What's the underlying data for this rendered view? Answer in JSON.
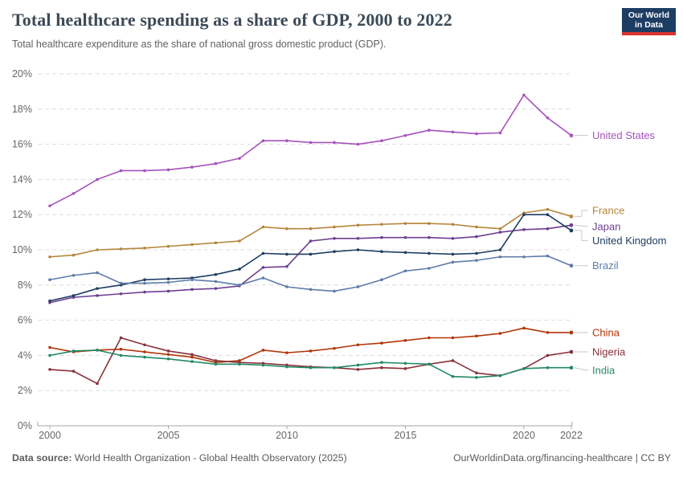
{
  "header": {
    "title": "Total healthcare spending as a share of GDP, 2000 to 2022",
    "subtitle": "Total healthcare expenditure as the share of national gross domestic product (GDP).",
    "logo": {
      "line1": "Our World",
      "line2": "in Data",
      "bg_color": "#1d3d63",
      "accent_color": "#dd352e"
    }
  },
  "chart_data": {
    "type": "line",
    "title": "Total healthcare spending as a share of GDP, 2000 to 2022",
    "xlabel": "",
    "ylabel": "",
    "x": [
      2000,
      2001,
      2002,
      2003,
      2004,
      2005,
      2006,
      2007,
      2008,
      2009,
      2010,
      2011,
      2012,
      2013,
      2014,
      2015,
      2016,
      2017,
      2018,
      2019,
      2020,
      2021,
      2022
    ],
    "x_tick_labels": [
      "2000",
      "2005",
      "2010",
      "2015",
      "2020",
      "2022"
    ],
    "x_tick_values": [
      2000,
      2005,
      2010,
      2015,
      2020,
      2022
    ],
    "y_tick_labels": [
      "0%",
      "2%",
      "4%",
      "6%",
      "8%",
      "10%",
      "12%",
      "14%",
      "16%",
      "18%",
      "20%"
    ],
    "y_tick_values": [
      0,
      2,
      4,
      6,
      8,
      10,
      12,
      14,
      16,
      18,
      20
    ],
    "ylim": [
      0,
      20
    ],
    "xlim": [
      2000,
      2022
    ],
    "grid": "horizontal-dashed",
    "legend_position": "right-of-line-endpoints",
    "grid_color": "#dddddd",
    "axis_color": "#a5a5a5",
    "tick_text_color": "#666666",
    "connector_color": "#c8c8c8",
    "series": [
      {
        "name": "United States",
        "color": "#a652ba",
        "values": [
          12.5,
          13.2,
          14.0,
          14.5,
          14.5,
          14.55,
          14.7,
          14.9,
          15.2,
          16.2,
          16.2,
          16.1,
          16.1,
          16.0,
          16.2,
          16.5,
          16.8,
          16.7,
          16.6,
          16.65,
          18.8,
          17.5,
          16.5
        ]
      },
      {
        "name": "France",
        "color": "#b5853b",
        "values": [
          9.6,
          9.7,
          10.0,
          10.05,
          10.1,
          10.2,
          10.3,
          10.4,
          10.5,
          11.3,
          11.2,
          11.2,
          11.3,
          11.4,
          11.45,
          11.5,
          11.5,
          11.45,
          11.3,
          11.2,
          12.1,
          12.3,
          11.9
        ]
      },
      {
        "name": "Japan",
        "color": "#6d3e91",
        "values": [
          7.0,
          7.3,
          7.4,
          7.5,
          7.6,
          7.65,
          7.75,
          7.8,
          7.95,
          9.0,
          9.05,
          10.5,
          10.65,
          10.65,
          10.7,
          10.7,
          10.7,
          10.65,
          10.75,
          11.0,
          11.15,
          11.2,
          11.4
        ]
      },
      {
        "name": "United Kingdom",
        "color": "#1d3d63",
        "values": [
          7.1,
          7.4,
          7.8,
          8.0,
          8.3,
          8.35,
          8.4,
          8.6,
          8.9,
          9.8,
          9.75,
          9.75,
          9.9,
          10.0,
          9.9,
          9.85,
          9.8,
          9.75,
          9.8,
          10.0,
          12.0,
          12.0,
          11.1
        ]
      },
      {
        "name": "Brazil",
        "color": "#5e7ca8",
        "values": [
          8.3,
          8.55,
          8.7,
          8.1,
          8.1,
          8.15,
          8.3,
          8.2,
          8.0,
          8.4,
          7.9,
          7.75,
          7.65,
          7.9,
          8.3,
          8.8,
          8.95,
          9.3,
          9.4,
          9.6,
          9.6,
          9.65,
          9.1
        ]
      },
      {
        "name": "China",
        "color": "#b13507",
        "values": [
          4.45,
          4.2,
          4.3,
          4.35,
          4.2,
          4.05,
          3.9,
          3.6,
          3.7,
          4.3,
          4.15,
          4.25,
          4.4,
          4.6,
          4.7,
          4.85,
          5.0,
          5.0,
          5.1,
          5.25,
          5.55,
          5.3,
          5.3
        ]
      },
      {
        "name": "Nigeria",
        "color": "#883039",
        "values": [
          3.2,
          3.1,
          2.4,
          5.0,
          4.6,
          4.25,
          4.05,
          3.7,
          3.6,
          3.55,
          3.45,
          3.35,
          3.3,
          3.2,
          3.3,
          3.25,
          3.5,
          3.7,
          3.0,
          2.85,
          3.25,
          4.0,
          4.2
        ]
      },
      {
        "name": "India",
        "color": "#218a66",
        "values": [
          4.0,
          4.25,
          4.3,
          4.0,
          3.9,
          3.8,
          3.65,
          3.5,
          3.5,
          3.45,
          3.35,
          3.3,
          3.3,
          3.45,
          3.6,
          3.55,
          3.5,
          2.8,
          2.75,
          2.85,
          3.25,
          3.3,
          3.3
        ]
      }
    ]
  },
  "footer": {
    "datasource_label": "Data source:",
    "datasource": " World Health Organization - Global Health Observatory (2025)",
    "link": "OurWorldinData.org/financing-healthcare | CC BY"
  }
}
